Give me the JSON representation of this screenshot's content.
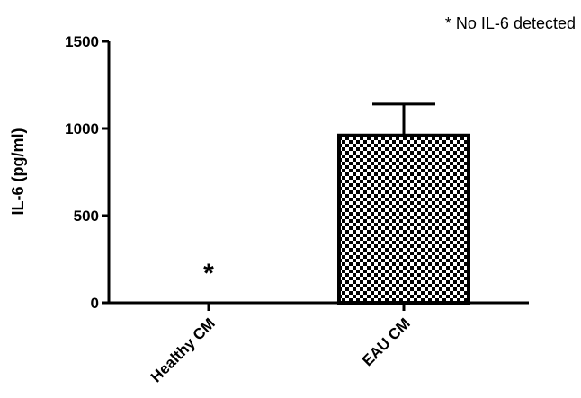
{
  "chart_data": {
    "type": "bar",
    "title": "",
    "xlabel": "",
    "ylabel": "IL-6 (pg/ml)",
    "ylim": [
      0,
      1500
    ],
    "yticks": [
      0,
      500,
      1000,
      1500
    ],
    "ytick_labels": [
      "0",
      "500",
      "1000",
      "1500"
    ],
    "categories": [
      "Healthy CM",
      "EAU CM"
    ],
    "values": [
      0,
      960
    ],
    "error_upper": [
      null,
      1140
    ],
    "markers": [
      "*",
      ""
    ],
    "fill_pattern": [
      "none",
      "checkerboard"
    ],
    "annotation": "* No IL-6 detected",
    "grid": false,
    "legend": "none"
  }
}
